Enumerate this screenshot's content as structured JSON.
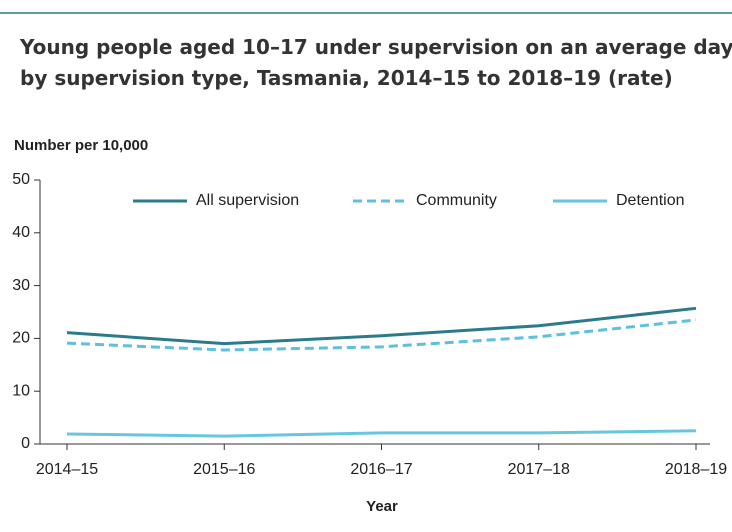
{
  "chart_data": {
    "type": "line",
    "title": "Young people aged 10–17 under supervision on an average day, by supervision type, Tasmania, 2014–15 to 2018–19 (rate)",
    "y_label": "Number per 10,000",
    "x_label": "Year",
    "categories": [
      "2014–15",
      "2015–16",
      "2016–17",
      "2017–18",
      "2018–19"
    ],
    "series": [
      {
        "name": "All supervision",
        "color": "#2b7b8a",
        "dash": "solid",
        "values": [
          21.1,
          19.0,
          20.5,
          22.4,
          25.7
        ]
      },
      {
        "name": "Community",
        "color": "#5cc0de",
        "dash": "dashed",
        "values": [
          19.1,
          17.8,
          18.4,
          20.3,
          23.5
        ]
      },
      {
        "name": "Detention",
        "color": "#66c6e2",
        "dash": "solid",
        "values": [
          1.9,
          1.5,
          2.1,
          2.1,
          2.5
        ]
      }
    ],
    "ylim": [
      0,
      50
    ],
    "yticks": [
      0,
      10,
      20,
      30,
      40,
      50
    ],
    "legend": "top",
    "grid": false
  }
}
